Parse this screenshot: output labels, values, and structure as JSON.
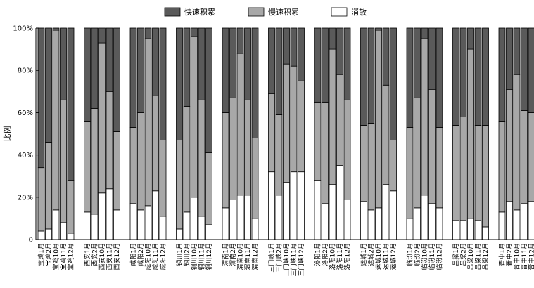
{
  "chart_data": {
    "type": "bar",
    "stacked": true,
    "percent": true,
    "ylabel": "比例",
    "ylim": [
      0,
      100
    ],
    "yticks": [
      "0",
      "20%",
      "40%",
      "60%",
      "80%",
      "100%"
    ],
    "legend_position": "top",
    "series": [
      {
        "name": "快速积累",
        "color": "#5a5a5a"
      },
      {
        "name": "慢速积累",
        "color": "#a8a8a8"
      },
      {
        "name": "消散",
        "color": "#ffffff"
      }
    ],
    "groups": [
      {
        "bars": [
          {
            "label": "宝鸡1月",
            "values": [
              66,
              30,
              4
            ]
          },
          {
            "label": "宝鸡2月",
            "values": [
              54,
              41,
              5
            ]
          },
          {
            "label": "宝鸡10月",
            "values": [
              1,
              85,
              14
            ]
          },
          {
            "label": "宝鸡11月",
            "values": [
              34,
              58,
              8
            ]
          },
          {
            "label": "宝鸡12月",
            "values": [
              72,
              25,
              3
            ]
          }
        ]
      },
      {
        "bars": [
          {
            "label": "西安1月",
            "values": [
              44,
              43,
              13
            ]
          },
          {
            "label": "西安2月",
            "values": [
              38,
              50,
              12
            ]
          },
          {
            "label": "西安10月",
            "values": [
              7,
              71,
              22
            ]
          },
          {
            "label": "西安11月",
            "values": [
              30,
              46,
              24
            ]
          },
          {
            "label": "西安12月",
            "values": [
              49,
              37,
              14
            ]
          }
        ]
      },
      {
        "bars": [
          {
            "label": "咸阳1月",
            "values": [
              47,
              36,
              17
            ]
          },
          {
            "label": "咸阳2月",
            "values": [
              40,
              46,
              14
            ]
          },
          {
            "label": "咸阳10月",
            "values": [
              5,
              79,
              16
            ]
          },
          {
            "label": "咸阳11月",
            "values": [
              32,
              45,
              23
            ]
          },
          {
            "label": "咸阳12月",
            "values": [
              53,
              36,
              11
            ]
          }
        ]
      },
      {
        "bars": [
          {
            "label": "铜川1月",
            "values": [
              53,
              42,
              5
            ]
          },
          {
            "label": "铜川2月",
            "values": [
              37,
              50,
              13
            ]
          },
          {
            "label": "铜川10月",
            "values": [
              4,
              76,
              20
            ]
          },
          {
            "label": "铜川11月",
            "values": [
              34,
              55,
              11
            ]
          },
          {
            "label": "铜川12月",
            "values": [
              59,
              34,
              7
            ]
          }
        ]
      },
      {
        "bars": [
          {
            "label": "渭南1月",
            "values": [
              40,
              45,
              15
            ]
          },
          {
            "label": "渭南2月",
            "values": [
              33,
              48,
              19
            ]
          },
          {
            "label": "渭南10月",
            "values": [
              12,
              67,
              21
            ]
          },
          {
            "label": "渭南11月",
            "values": [
              34,
              45,
              21
            ]
          },
          {
            "label": "渭南12月",
            "values": [
              52,
              38,
              10
            ]
          }
        ]
      },
      {
        "bars": [
          {
            "label": "三门峡1月",
            "values": [
              31,
              37,
              32
            ]
          },
          {
            "label": "三门峡2月",
            "values": [
              41,
              38,
              21
            ]
          },
          {
            "label": "三门峡10月",
            "values": [
              17,
              56,
              27
            ]
          },
          {
            "label": "三门峡11月",
            "values": [
              18,
              50,
              32
            ]
          },
          {
            "label": "三门峡12月",
            "values": [
              25,
              43,
              32
            ]
          }
        ]
      },
      {
        "bars": [
          {
            "label": "洛阳1月",
            "values": [
              35,
              37,
              28
            ]
          },
          {
            "label": "洛阳2月",
            "values": [
              35,
              48,
              17
            ]
          },
          {
            "label": "洛阳10月",
            "values": [
              10,
              64,
              26
            ]
          },
          {
            "label": "洛阳11月",
            "values": [
              22,
              43,
              35
            ]
          },
          {
            "label": "洛阳12月",
            "values": [
              34,
              47,
              19
            ]
          }
        ]
      },
      {
        "bars": [
          {
            "label": "运城1月",
            "values": [
              46,
              36,
              18
            ]
          },
          {
            "label": "运城2月",
            "values": [
              45,
              41,
              14
            ]
          },
          {
            "label": "运城10月",
            "values": [
              1,
              84,
              15
            ]
          },
          {
            "label": "运城11月",
            "values": [
              27,
              47,
              26
            ]
          },
          {
            "label": "运城12月",
            "values": [
              53,
              24,
              23
            ]
          }
        ]
      },
      {
        "bars": [
          {
            "label": "临汾1月",
            "values": [
              47,
              43,
              10
            ]
          },
          {
            "label": "临汾2月",
            "values": [
              33,
              52,
              15
            ]
          },
          {
            "label": "临汾10月",
            "values": [
              5,
              74,
              21
            ]
          },
          {
            "label": "临汾11月",
            "values": [
              29,
              54,
              17
            ]
          },
          {
            "label": "临汾12月",
            "values": [
              47,
              38,
              15
            ]
          }
        ]
      },
      {
        "bars": [
          {
            "label": "吕梁1月",
            "values": [
              46,
              45,
              9
            ]
          },
          {
            "label": "吕梁2月",
            "values": [
              42,
              49,
              9
            ]
          },
          {
            "label": "吕梁10月",
            "values": [
              10,
              80,
              10
            ]
          },
          {
            "label": "吕梁11月",
            "values": [
              46,
              45,
              9
            ]
          },
          {
            "label": "吕梁12月",
            "values": [
              46,
              48,
              6
            ]
          }
        ]
      },
      {
        "bars": [
          {
            "label": "晋中1月",
            "values": [
              44,
              43,
              13
            ]
          },
          {
            "label": "晋中2月",
            "values": [
              29,
              53,
              18
            ]
          },
          {
            "label": "晋中10月",
            "values": [
              22,
              64,
              14
            ]
          },
          {
            "label": "晋中11月",
            "values": [
              39,
              44,
              17
            ]
          },
          {
            "label": "晋中12月",
            "values": [
              40,
              42,
              18
            ]
          }
        ]
      }
    ]
  }
}
